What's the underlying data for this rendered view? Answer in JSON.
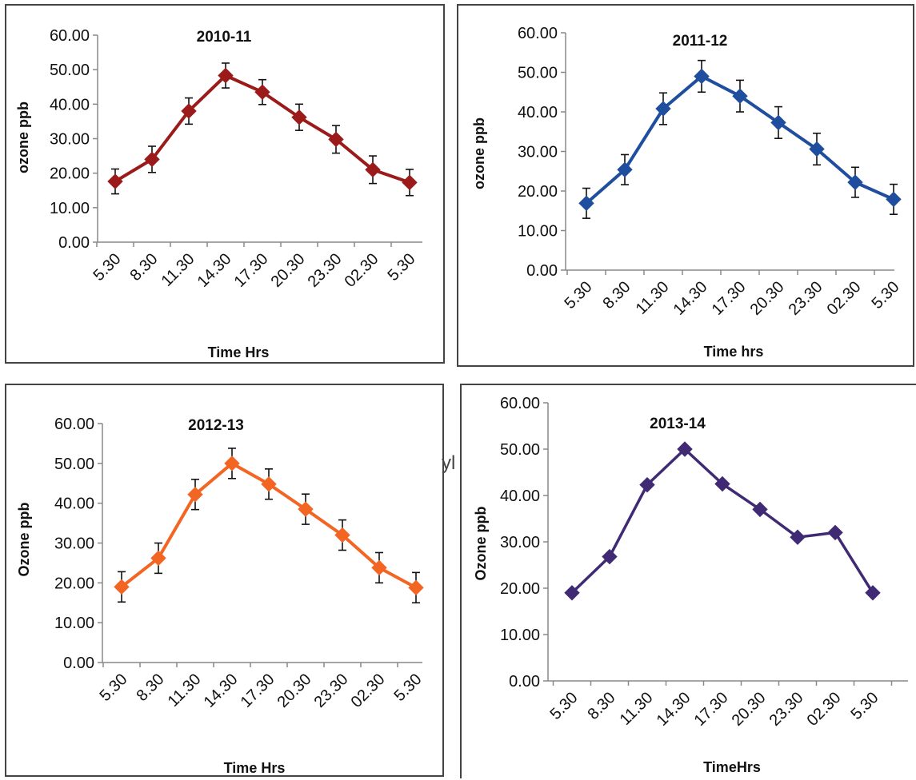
{
  "chart_data": [
    {
      "type": "line",
      "title": "2010-11",
      "xlabel": "Time Hrs",
      "ylabel": "ozone ppb",
      "categories": [
        "5.30",
        "8.30",
        "11.30",
        "14.30",
        "17.30",
        "20.30",
        "23.30",
        "02.30",
        "5.30"
      ],
      "y_tick_labels": [
        "0.00",
        "10.00",
        "20.00",
        "30.00",
        "40.00",
        "50.00",
        "60.00"
      ],
      "ylim": [
        0,
        60
      ],
      "grid": false,
      "error_bars": true,
      "series": [
        {
          "values": [
            17.6,
            24.0,
            38.0,
            48.3,
            43.5,
            36.2,
            29.8,
            21.0,
            17.3
          ],
          "errors": [
            3.6,
            3.8,
            3.8,
            3.6,
            3.6,
            3.8,
            4.0,
            4.0,
            3.8
          ],
          "color": "#9B1B1B"
        }
      ]
    },
    {
      "type": "line",
      "title": "2011-12",
      "xlabel": "Time hrs",
      "ylabel": "ozone ppb",
      "categories": [
        "5.30",
        "8.30",
        "11.30",
        "14.30",
        "17.30",
        "20.30",
        "23.30",
        "02.30",
        "5.30"
      ],
      "y_tick_labels": [
        "0.00",
        "10.00",
        "20.00",
        "30.00",
        "40.00",
        "50.00",
        "60.00"
      ],
      "ylim": [
        0,
        60
      ],
      "grid": false,
      "error_bars": true,
      "series": [
        {
          "values": [
            16.9,
            25.4,
            40.8,
            49.0,
            44.0,
            37.3,
            30.6,
            22.2,
            17.9
          ],
          "errors": [
            3.8,
            3.8,
            4.0,
            4.0,
            4.0,
            4.0,
            4.0,
            3.8,
            3.8
          ],
          "color": "#1F4E9E"
        }
      ]
    },
    {
      "type": "line",
      "title": "2012-13",
      "xlabel": "Time Hrs",
      "ylabel": "Ozone ppb",
      "categories": [
        "5.30",
        "8.30",
        "11.30",
        "14.30",
        "17.30",
        "20.30",
        "23.30",
        "02.30",
        "5.30"
      ],
      "y_tick_labels": [
        "0.00",
        "10.00",
        "20.00",
        "30.00",
        "40.00",
        "50.00",
        "60.00"
      ],
      "ylim": [
        0,
        60
      ],
      "grid": false,
      "error_bars": true,
      "series": [
        {
          "values": [
            19.0,
            26.2,
            42.2,
            50.0,
            44.8,
            38.5,
            32.0,
            23.8,
            18.8
          ],
          "errors": [
            3.8,
            3.8,
            3.8,
            3.8,
            3.8,
            3.8,
            3.8,
            3.8,
            3.8
          ],
          "color": "#F26522"
        }
      ]
    },
    {
      "type": "line",
      "title": "2013-14",
      "xlabel": "TimeHrs",
      "ylabel": "Ozone ppb",
      "categories": [
        "5.30",
        "8.30",
        "11.30",
        "14.30",
        "17.30",
        "20.30",
        "23.30",
        "02.30",
        "5.30"
      ],
      "y_tick_labels": [
        "0.00",
        "10.00",
        "20.00",
        "30.00",
        "40.00",
        "50.00",
        "60.00"
      ],
      "ylim": [
        0,
        60
      ],
      "grid": false,
      "error_bars": false,
      "series": [
        {
          "values": [
            19.0,
            26.8,
            42.3,
            50.0,
            42.5,
            37.0,
            31.0,
            32.0,
            19.0
          ],
          "color": "#3F2A73"
        }
      ]
    }
  ],
  "stray_text": "yl"
}
